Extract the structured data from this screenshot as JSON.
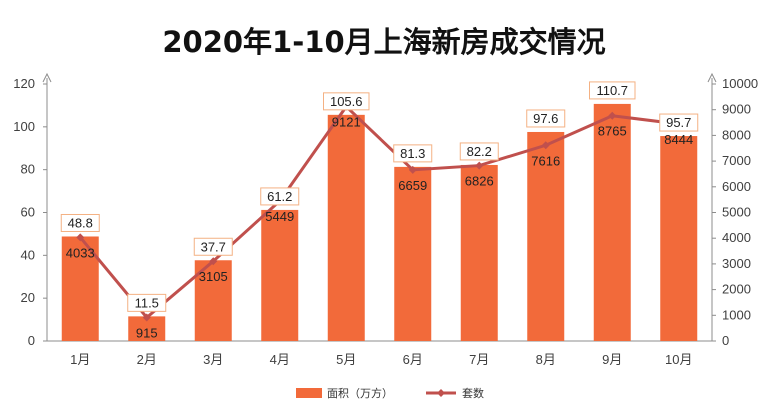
{
  "chart_data": {
    "type": "bar",
    "title": "2020年1-10月上海新房成交情况",
    "categories": [
      "1月",
      "2月",
      "3月",
      "4月",
      "5月",
      "6月",
      "7月",
      "8月",
      "9月",
      "10月"
    ],
    "series": [
      {
        "name": "面积（万方）",
        "type": "bar",
        "axis": "left",
        "values": [
          48.8,
          11.5,
          37.7,
          61.2,
          105.6,
          81.3,
          82.2,
          97.6,
          110.7,
          95.7
        ]
      },
      {
        "name": "套数",
        "type": "line",
        "axis": "right",
        "values": [
          4033,
          915,
          3105,
          5449,
          9121,
          6659,
          6826,
          7616,
          8765,
          8444
        ]
      }
    ],
    "ylim": [
      0,
      120
    ],
    "yticks": [
      "0",
      "20",
      "40",
      "60",
      "80",
      "100",
      "120"
    ],
    "y2lim": [
      0,
      10000
    ],
    "y2ticks": [
      "0",
      "1000",
      "2000",
      "3000",
      "4000",
      "5000",
      "6000",
      "7000",
      "8000",
      "9000",
      "10000"
    ],
    "legend": "bottom-center",
    "grid": false,
    "colors": {
      "bar": "#f26a3a",
      "line": "#c0504d",
      "label_box": "#f4b183"
    }
  }
}
